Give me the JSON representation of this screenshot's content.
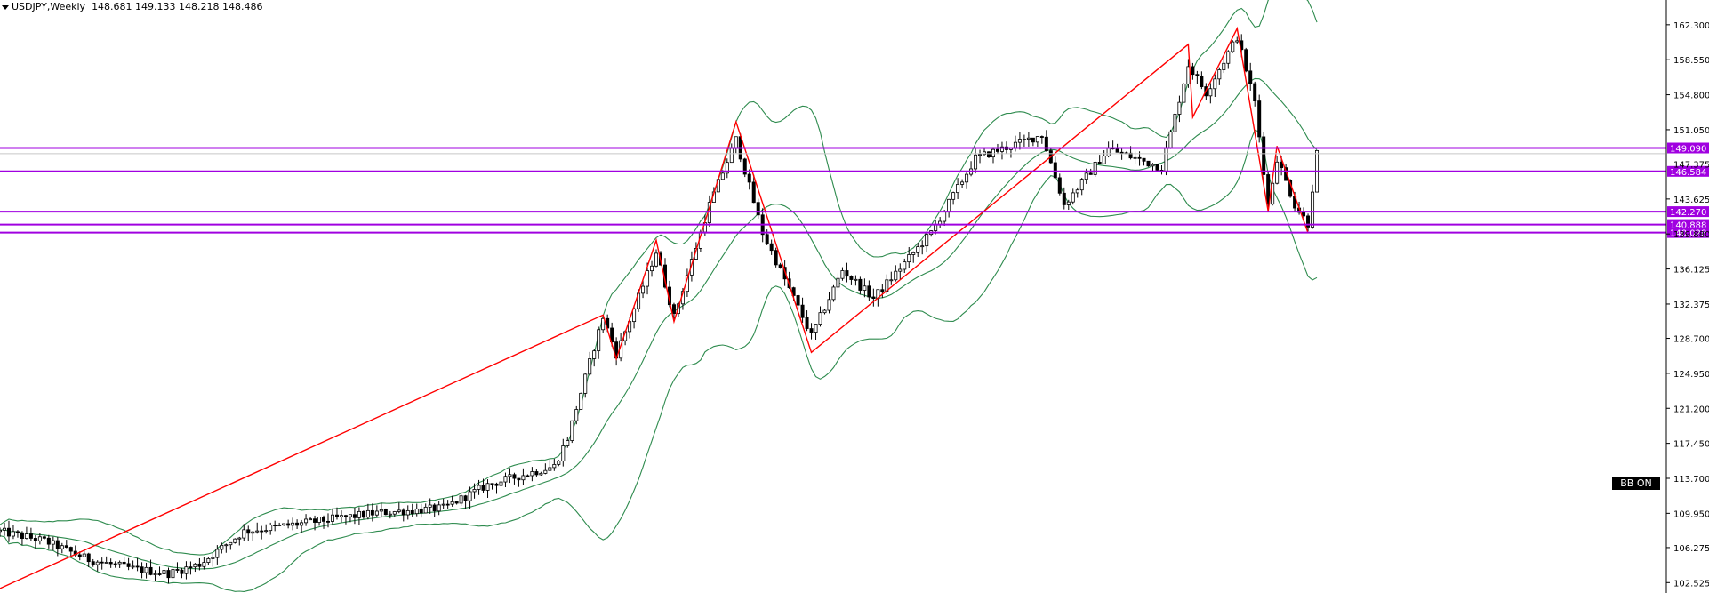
{
  "header": {
    "symbol": "USDJPY,Weekly",
    "ohlc": "148.681 149.133 148.218 148.486"
  },
  "bb_button": {
    "label": "BB ON"
  },
  "colors": {
    "levels": "#a000e0",
    "zigzag": "#ff0000",
    "bands": "#2e8b4e",
    "candle_down": "#000000",
    "candle_up": "#ffffff"
  },
  "chart_data": {
    "type": "candlestick",
    "ylim": [
      101.6,
      164.0
    ],
    "yticks": [
      "162.300",
      "158.550",
      "154.800",
      "151.050",
      "147.375",
      "143.625",
      "139.880",
      "136.125",
      "132.375",
      "128.700",
      "124.950",
      "121.200",
      "117.450",
      "113.700",
      "109.950",
      "106.275",
      "102.525"
    ],
    "current_price": 148.486,
    "horizontal_levels": [
      {
        "value": 149.09,
        "label": "149.090"
      },
      {
        "value": 146.584,
        "label": "146.584"
      },
      {
        "value": 142.27,
        "label": "142.270"
      },
      {
        "value": 140.888,
        "label": "140.888"
      },
      {
        "value": 140.028,
        "label": "140.028"
      }
    ],
    "zigzag": [
      {
        "bar": 0,
        "price": 101.9
      },
      {
        "bar": 136,
        "price": 131.2
      },
      {
        "bar": 139,
        "price": 126.5
      },
      {
        "bar": 148,
        "price": 139.2
      },
      {
        "bar": 152,
        "price": 130.5
      },
      {
        "bar": 166,
        "price": 151.9
      },
      {
        "bar": 183,
        "price": 127.2
      },
      {
        "bar": 268,
        "price": 160.2
      },
      {
        "bar": 269,
        "price": 152.4
      },
      {
        "bar": 279,
        "price": 161.9
      },
      {
        "bar": 286,
        "price": 142.3
      },
      {
        "bar": 288,
        "price": 149.3
      },
      {
        "bar": 295,
        "price": 140.0
      }
    ],
    "bar_count": 298
  }
}
